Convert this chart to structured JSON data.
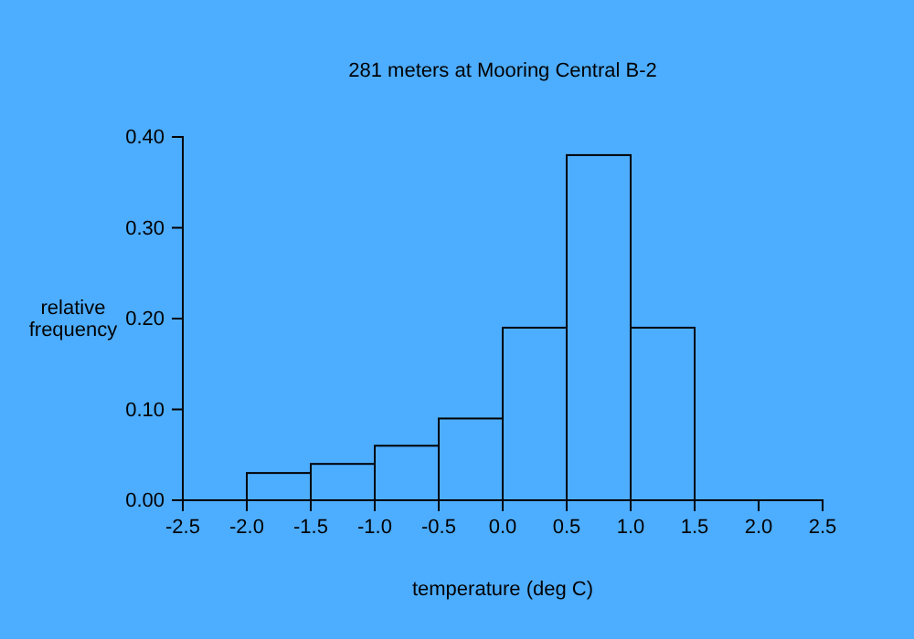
{
  "chart_data": {
    "type": "histogram",
    "title": "281 meters at Mooring Central B-2",
    "xlabel": "temperature (deg C)",
    "ylabel": "relative frequency",
    "bins": [
      -2.0,
      -1.5,
      -1.0,
      -0.5,
      0.0,
      0.5,
      1.0,
      1.5
    ],
    "values": [
      0.03,
      0.04,
      0.06,
      0.09,
      0.19,
      0.38,
      0.19
    ],
    "color": "#000000",
    "xlim": [
      -2.5,
      2.5
    ],
    "xticks": [
      {
        "value": -2.5,
        "label": "-2.5"
      },
      {
        "value": -2.0,
        "label": "-2.0"
      },
      {
        "value": -1.5,
        "label": "-1.5"
      },
      {
        "value": -1.0,
        "label": "-1.0"
      },
      {
        "value": -0.5,
        "label": "-0.5"
      },
      {
        "value": 0,
        "label": "0.0"
      },
      {
        "value": 0.5,
        "label": "0.5"
      },
      {
        "value": 1.0,
        "label": "1.0"
      },
      {
        "value": 1.5,
        "label": "1.5"
      },
      {
        "value": 2.0,
        "label": "2.0"
      },
      {
        "value": 2.5,
        "label": "2.5"
      }
    ],
    "ylim": [
      0,
      0.4
    ],
    "yticks": [
      {
        "value": 0,
        "label": "0.00"
      },
      {
        "value": 0.1,
        "label": "0.10"
      },
      {
        "value": 0.2,
        "label": "0.20"
      },
      {
        "value": 0.3,
        "label": "0.30"
      },
      {
        "value": 0.4,
        "label": "0.40"
      }
    ],
    "grid": false
  }
}
